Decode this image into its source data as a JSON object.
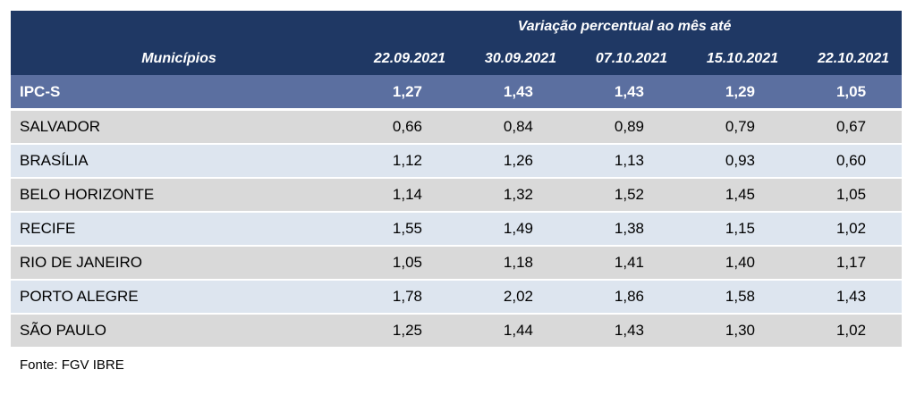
{
  "table": {
    "super_header": "Variação percentual ao mês até",
    "first_column_header": "Municípios",
    "date_columns": [
      "22.09.2021",
      "30.09.2021",
      "07.10.2021",
      "15.10.2021",
      "22.10.2021"
    ],
    "summary_row": {
      "name": "IPC-S",
      "values": [
        "1,27",
        "1,43",
        "1,43",
        "1,29",
        "1,05"
      ]
    },
    "rows": [
      {
        "name": "SALVADOR",
        "values": [
          "0,66",
          "0,84",
          "0,89",
          "0,79",
          "0,67"
        ]
      },
      {
        "name": "BRASÍLIA",
        "values": [
          "1,12",
          "1,26",
          "1,13",
          "0,93",
          "0,60"
        ]
      },
      {
        "name": "BELO HORIZONTE",
        "values": [
          "1,14",
          "1,32",
          "1,52",
          "1,45",
          "1,05"
        ]
      },
      {
        "name": "RECIFE",
        "values": [
          "1,55",
          "1,49",
          "1,38",
          "1,15",
          "1,02"
        ]
      },
      {
        "name": "RIO DE JANEIRO",
        "values": [
          "1,05",
          "1,18",
          "1,41",
          "1,40",
          "1,17"
        ]
      },
      {
        "name": "PORTO ALEGRE",
        "values": [
          "1,78",
          "2,02",
          "1,86",
          "1,58",
          "1,43"
        ]
      },
      {
        "name": "SÃO PAULO",
        "values": [
          "1,25",
          "1,44",
          "1,43",
          "1,30",
          "1,02"
        ]
      }
    ]
  },
  "source": "Fonte: FGV IBRE",
  "colors": {
    "header_bg": "#1f3864",
    "summary_bg": "#5b6fa0",
    "row_odd_bg": "#d9d9d9",
    "row_even_bg": "#dde5ef"
  }
}
